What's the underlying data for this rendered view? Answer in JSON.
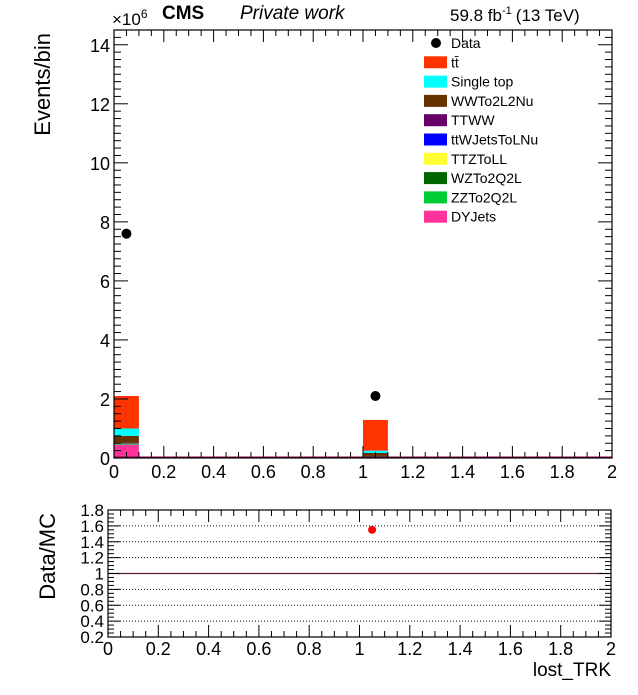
{
  "header": {
    "cms": "CMS",
    "private": "Private work",
    "lumi_value": "59.8 fb",
    "lumi_exp": "-1",
    "energy": "(13 TeV)"
  },
  "chart_data": [
    {
      "type": "bar",
      "stacked": true,
      "ylabel": "Events/bin",
      "y_multiplier_base": "×10",
      "y_multiplier_exp": "6",
      "xlim": [
        0,
        2
      ],
      "ylim": [
        0,
        14.5
      ],
      "x_ticks": [
        "0",
        "0.2",
        "0.4",
        "0.6",
        "0.8",
        "1",
        "1.2",
        "1.4",
        "1.6",
        "1.8",
        "2"
      ],
      "y_ticks": [
        "0",
        "2",
        "4",
        "6",
        "8",
        "10",
        "12",
        "14"
      ],
      "bins": [
        [
          0,
          0.1
        ],
        [
          1.0,
          1.1
        ]
      ],
      "series": [
        {
          "name": "DYJets",
          "color": "#ff3399",
          "values": [
            0.45,
            0.05
          ]
        },
        {
          "name": "ZZTo2Q2L",
          "color": "#00cc33",
          "values": [
            0.02,
            0.01
          ]
        },
        {
          "name": "WZTo2Q2L",
          "color": "#006600",
          "values": [
            0.02,
            0.01
          ]
        },
        {
          "name": "TTZToLL",
          "color": "#ffff33",
          "values": [
            0.01,
            0.0
          ]
        },
        {
          "name": "ttWJetsToLNu",
          "color": "#0000ff",
          "values": [
            0.01,
            0.0
          ]
        },
        {
          "name": "TTWW",
          "color": "#660066",
          "values": [
            0.01,
            0.0
          ]
        },
        {
          "name": "WWTo2L2Nu",
          "color": "#663300",
          "values": [
            0.23,
            0.1
          ]
        },
        {
          "name": "Single top",
          "color": "#00ffff",
          "values": [
            0.25,
            0.08
          ]
        },
        {
          "name": "tt̄",
          "color": "#ff3300",
          "values": [
            1.1,
            1.04
          ]
        }
      ],
      "data": {
        "name": "Data",
        "x": [
          0.05,
          1.05
        ],
        "y": [
          7.6,
          2.1
        ]
      },
      "legend": {
        "position": "top-right"
      }
    },
    {
      "type": "scatter",
      "ylabel": "Data/MC",
      "xlabel": "lost_TRK",
      "xlim": [
        0,
        2
      ],
      "ylim": [
        0.2,
        1.8
      ],
      "x_ticks": [
        "0",
        "0.2",
        "0.4",
        "0.6",
        "0.8",
        "1",
        "1.2",
        "1.4",
        "1.6",
        "1.8",
        "2"
      ],
      "y_ticks": [
        "0.2",
        "0.4",
        "0.6",
        "0.8",
        "1",
        "1.2",
        "1.4",
        "1.6",
        "1.8"
      ],
      "reference_line": 1,
      "grid": "horizontal-dotted",
      "points": {
        "x": [
          1.05
        ],
        "y": [
          1.55
        ],
        "color": "#ff0000"
      }
    }
  ]
}
